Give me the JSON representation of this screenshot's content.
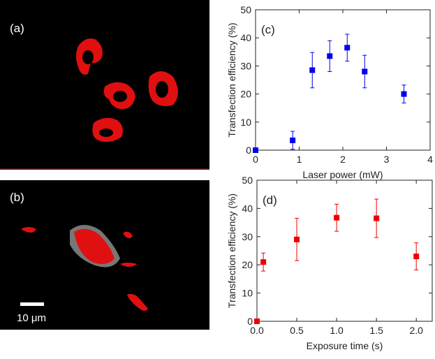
{
  "images": [
    {
      "label": "(a)"
    },
    {
      "label": "(b)",
      "scale_bar": "10 μm"
    }
  ],
  "chart_data": [
    {
      "type": "scatter",
      "annotation": "(c)",
      "x_label": "Laser power (mW)",
      "y_label": "Transfection efficiency (%)",
      "x": [
        0,
        0.85,
        1.3,
        1.7,
        2.1,
        2.5,
        3.4
      ],
      "series": [
        {
          "color": "#0000ee",
          "values": [
            0,
            3.5,
            28.5,
            33.5,
            36.5,
            28,
            20
          ],
          "errors": [
            null,
            3.2,
            6.3,
            5.5,
            4.8,
            5.8,
            3.2
          ]
        }
      ],
      "xlim": [
        0,
        4
      ],
      "xticks": [
        0,
        1,
        2,
        3,
        4
      ],
      "ylim": [
        0,
        50
      ],
      "yticks": [
        0,
        10,
        20,
        30,
        40,
        50
      ]
    },
    {
      "type": "scatter",
      "annotation": "(d)",
      "x_label": "Exposure time (s)",
      "y_label": "Transfection efficiency (%)",
      "x": [
        0,
        0.08,
        0.5,
        1.0,
        1.5,
        2.0
      ],
      "series": [
        {
          "color": "#ee0000",
          "values": [
            0,
            21,
            29,
            36.7,
            36.5,
            23
          ],
          "errors": [
            null,
            3.2,
            7.5,
            4.8,
            6.8,
            4.8
          ]
        }
      ],
      "xlim": [
        0,
        2.2
      ],
      "xticks": [
        {
          "value": 0,
          "label": "0.0"
        },
        0.5,
        {
          "value": 1,
          "label": "1.0"
        },
        1.5,
        {
          "value": 2,
          "label": "2.0"
        }
      ],
      "ylim": [
        0,
        50
      ],
      "yticks": [
        0,
        10,
        20,
        30,
        40,
        50
      ]
    }
  ]
}
